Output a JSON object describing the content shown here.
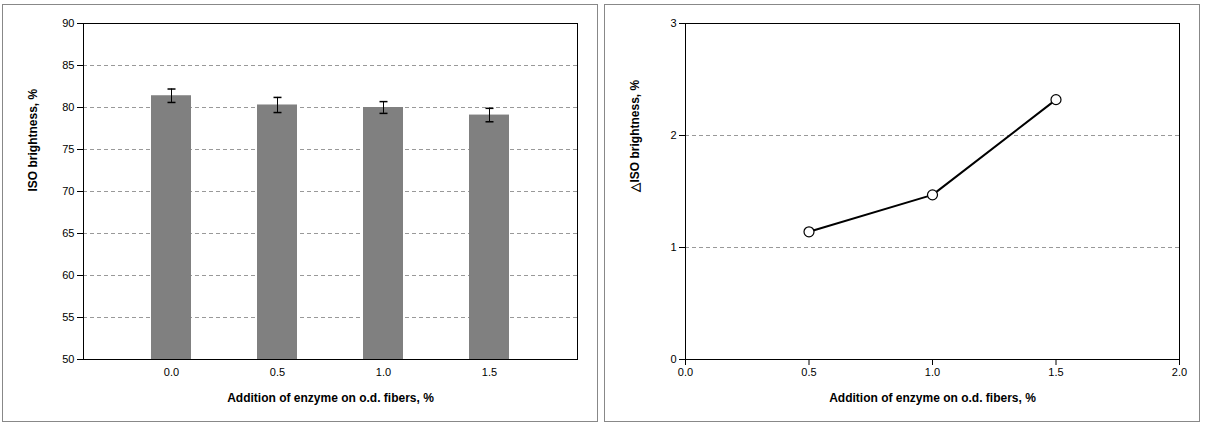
{
  "chart_data": [
    {
      "type": "bar",
      "categories": [
        "0.0",
        "0.5",
        "1.0",
        "1.5"
      ],
      "values": [
        81.4,
        80.3,
        80.0,
        79.1
      ],
      "errors": [
        0.8,
        0.9,
        0.7,
        0.8
      ],
      "color": "#808080",
      "x_label": "Addition of enzyme on o.d. fibers, %",
      "y_label": "ISO brightness, %",
      "ylim": [
        50,
        90
      ],
      "yticks": [
        50,
        55,
        60,
        65,
        70,
        75,
        80,
        85,
        90
      ],
      "grid": true
    },
    {
      "type": "line",
      "x": [
        0.5,
        1.0,
        1.5
      ],
      "values": [
        1.14,
        1.47,
        2.32
      ],
      "color": "#000000",
      "marker": "circle",
      "x_label": "Addition of enzyme on o.d. fibers, %",
      "y_label": "△ISO brightness, %",
      "xlim": [
        0,
        2
      ],
      "xticks": [
        {
          "value": 0,
          "label": "0.0"
        },
        {
          "value": 0.5,
          "label": "0.5"
        },
        {
          "value": 1,
          "label": "1.0"
        },
        {
          "value": 1.5,
          "label": "1.5"
        },
        {
          "value": 2,
          "label": "2.0"
        }
      ],
      "ylim": [
        0,
        3
      ],
      "yticks": [
        0,
        1,
        2,
        3
      ],
      "grid": true
    }
  ]
}
